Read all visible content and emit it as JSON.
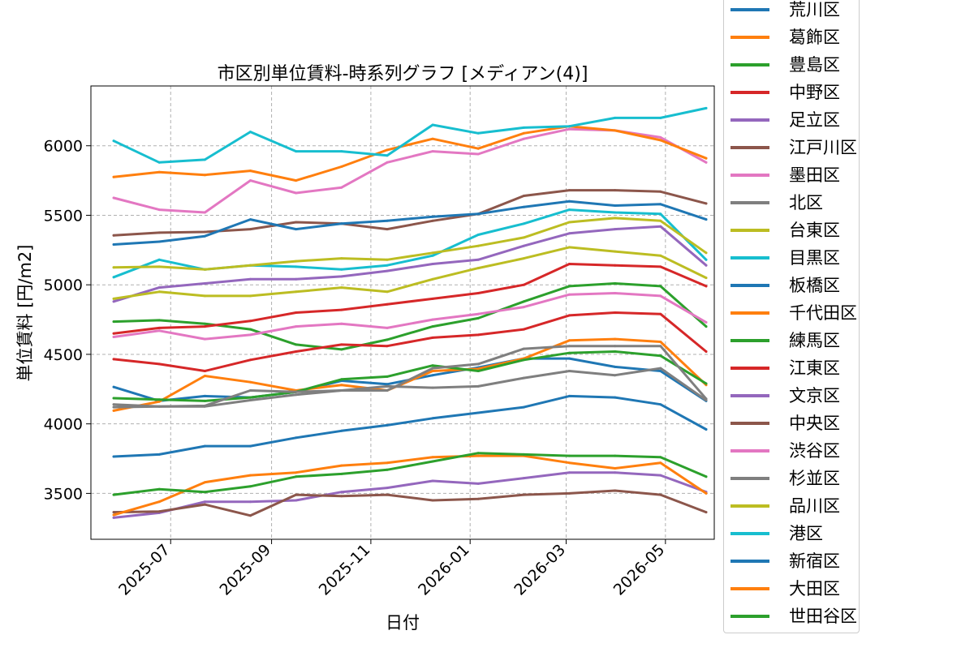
{
  "chart_data": {
    "type": "line",
    "title": "市区別単位賃料-時系列グラフ [メディアン(4)]",
    "xlabel": "日付",
    "ylabel": "単位賃料 [円/m2]",
    "xlim": [
      "2025-05-13",
      "2026-05-31"
    ],
    "ylim": [
      3170,
      6430
    ],
    "xticks": [
      "2025-07",
      "2025-09",
      "2025-11",
      "2026-01",
      "2026-03",
      "2026-05"
    ],
    "xtick_dates": [
      "2025-07-01",
      "2025-09-01",
      "2025-11-01",
      "2026-01-01",
      "2026-03-01",
      "2026-05-01"
    ],
    "yticks": [
      3500,
      4000,
      4500,
      5000,
      5500,
      6000
    ],
    "grid": true,
    "legend_position": "outside-right",
    "x_dates": [
      "2025-05-27",
      "2025-06-24",
      "2025-07-22",
      "2025-08-19",
      "2025-09-16",
      "2025-10-14",
      "2025-11-11",
      "2025-12-09",
      "2026-01-06",
      "2026-02-03",
      "2026-03-03",
      "2026-03-31",
      "2026-04-28",
      "2026-05-26"
    ],
    "series": [
      {
        "name": "荒川区",
        "color": "#1f77b4",
        "values": [
          4265,
          4165,
          4200,
          4190,
          4230,
          4310,
          4285,
          4350,
          4405,
          4470,
          4470,
          4410,
          4380,
          4165
        ]
      },
      {
        "name": "葛飾区",
        "color": "#ff7f0e",
        "values": [
          4095,
          4160,
          4345,
          4300,
          4240,
          4280,
          4240,
          4380,
          4395,
          4470,
          4600,
          4610,
          4590,
          4280
        ]
      },
      {
        "name": "豊島区",
        "color": "#2ca02c",
        "values": [
          4735,
          4745,
          4720,
          4680,
          4570,
          4535,
          4605,
          4700,
          4760,
          4880,
          4990,
          5010,
          4990,
          4700
        ]
      },
      {
        "name": "中野区",
        "color": "#d62728",
        "values": [
          4650,
          4690,
          4700,
          4740,
          4800,
          4820,
          4860,
          4900,
          4940,
          5000,
          5150,
          5140,
          5130,
          4990
        ]
      },
      {
        "name": "足立区",
        "color": "#9467bd",
        "values": [
          4880,
          4980,
          5010,
          5040,
          5040,
          5060,
          5100,
          5150,
          5180,
          5280,
          5370,
          5400,
          5420,
          5140
        ]
      },
      {
        "name": "江戸川区",
        "color": "#8c564b",
        "values": [
          5355,
          5375,
          5380,
          5400,
          5450,
          5440,
          5400,
          5460,
          5510,
          5640,
          5680,
          5680,
          5670,
          5585
        ]
      },
      {
        "name": "墨田区",
        "color": "#e377c2",
        "values": [
          5625,
          5540,
          5520,
          5750,
          5660,
          5700,
          5880,
          5960,
          5940,
          6050,
          6120,
          6110,
          6060,
          5880
        ]
      },
      {
        "name": "北区",
        "color": "#7f7f7f",
        "values": [
          4120,
          4125,
          4125,
          4170,
          4210,
          4240,
          4270,
          4260,
          4270,
          4330,
          4380,
          4350,
          4400,
          4170
        ]
      },
      {
        "name": "台東区",
        "color": "#bcbd22",
        "values": [
          4900,
          4950,
          4920,
          4920,
          4950,
          4980,
          4950,
          5040,
          5120,
          5190,
          5270,
          5240,
          5210,
          5050
        ]
      },
      {
        "name": "目黒区",
        "color": "#17becf",
        "values": [
          5055,
          5180,
          5110,
          5140,
          5130,
          5110,
          5140,
          5210,
          5360,
          5440,
          5540,
          5520,
          5510,
          5180
        ]
      },
      {
        "name": "板橋区",
        "color": "#1f77b4",
        "values": [
          5290,
          5310,
          5350,
          5470,
          5400,
          5440,
          5460,
          5490,
          5510,
          5560,
          5600,
          5570,
          5580,
          5470
        ]
      },
      {
        "name": "千代田区",
        "color": "#ff7f0e",
        "values": [
          5775,
          5810,
          5790,
          5820,
          5750,
          5850,
          5970,
          6050,
          5980,
          6090,
          6140,
          6110,
          6040,
          5910
        ]
      },
      {
        "name": "練馬区",
        "color": "#2ca02c",
        "values": [
          4185,
          4175,
          4165,
          4190,
          4230,
          4320,
          4340,
          4420,
          4380,
          4460,
          4510,
          4520,
          4490,
          4290
        ]
      },
      {
        "name": "江東区",
        "color": "#d62728",
        "values": [
          4465,
          4430,
          4380,
          4460,
          4520,
          4570,
          4560,
          4620,
          4640,
          4680,
          4780,
          4800,
          4790,
          4520
        ]
      },
      {
        "name": "文京区",
        "color": "#9467bd",
        "values": [
          3325,
          3360,
          3440,
          3440,
          3450,
          3510,
          3540,
          3590,
          3570,
          3610,
          3650,
          3650,
          3630,
          3510
        ]
      },
      {
        "name": "中央区",
        "color": "#8c564b",
        "values": [
          3365,
          3370,
          3420,
          3340,
          3490,
          3480,
          3490,
          3450,
          3460,
          3490,
          3500,
          3520,
          3490,
          3365
        ]
      },
      {
        "name": "渋谷区",
        "color": "#e377c2",
        "values": [
          4625,
          4670,
          4610,
          4640,
          4700,
          4720,
          4690,
          4750,
          4790,
          4840,
          4930,
          4940,
          4920,
          4730
        ]
      },
      {
        "name": "杉並区",
        "color": "#7f7f7f",
        "values": [
          4140,
          4125,
          4130,
          4240,
          4230,
          4240,
          4240,
          4400,
          4430,
          4540,
          4560,
          4560,
          4560,
          4180
        ]
      },
      {
        "name": "品川区",
        "color": "#bcbd22",
        "values": [
          5125,
          5130,
          5110,
          5140,
          5170,
          5190,
          5180,
          5230,
          5280,
          5340,
          5450,
          5480,
          5460,
          5230
        ]
      },
      {
        "name": "港区",
        "color": "#17becf",
        "values": [
          6035,
          5880,
          5900,
          6100,
          5960,
          5960,
          5930,
          6150,
          6090,
          6130,
          6140,
          6200,
          6200,
          6270
        ]
      },
      {
        "name": "新宿区",
        "color": "#1f77b4",
        "values": [
          3765,
          3780,
          3840,
          3840,
          3900,
          3950,
          3990,
          4040,
          4080,
          4120,
          4200,
          4190,
          4140,
          3960
        ]
      },
      {
        "name": "大田区",
        "color": "#ff7f0e",
        "values": [
          3345,
          3440,
          3580,
          3630,
          3650,
          3700,
          3720,
          3760,
          3770,
          3770,
          3720,
          3680,
          3720,
          3500
        ]
      },
      {
        "name": "世田谷区",
        "color": "#2ca02c",
        "values": [
          3490,
          3530,
          3510,
          3550,
          3620,
          3640,
          3670,
          3730,
          3790,
          3780,
          3770,
          3770,
          3760,
          3620
        ]
      }
    ]
  }
}
